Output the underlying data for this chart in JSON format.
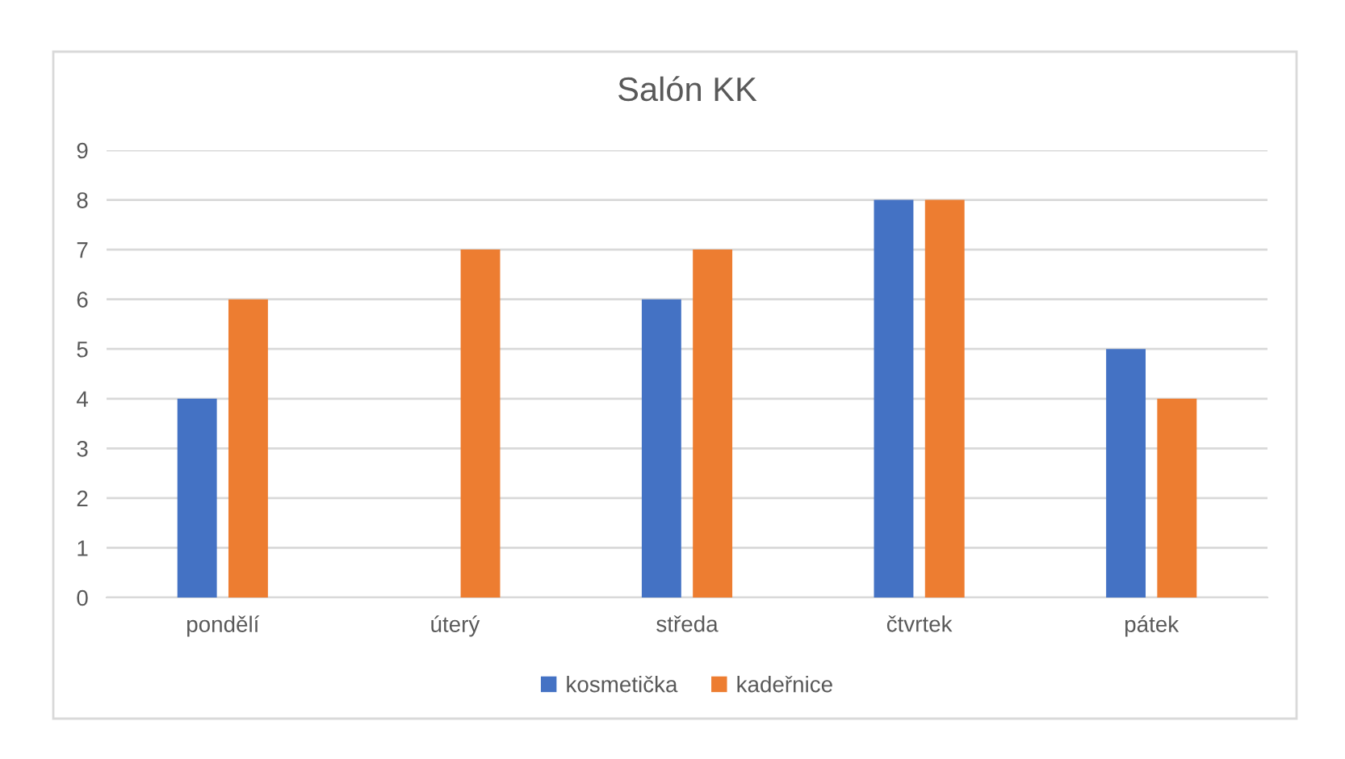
{
  "chart_data": {
    "type": "bar",
    "title": "Salón KK",
    "categories": [
      "pondělí",
      "úterý",
      "středa",
      "čtvrtek",
      "pátek"
    ],
    "series": [
      {
        "name": "kosmetička",
        "color": "#4472c4",
        "values": [
          4,
          0,
          6,
          8,
          5
        ]
      },
      {
        "name": "kadeřnice",
        "color": "#ed7d31",
        "values": [
          6,
          7,
          7,
          8,
          4
        ]
      }
    ],
    "ylim": [
      0,
      9
    ],
    "yticks": [
      0,
      1,
      2,
      3,
      4,
      5,
      6,
      7,
      8,
      9
    ],
    "grid": "y",
    "legend": "bottom"
  }
}
